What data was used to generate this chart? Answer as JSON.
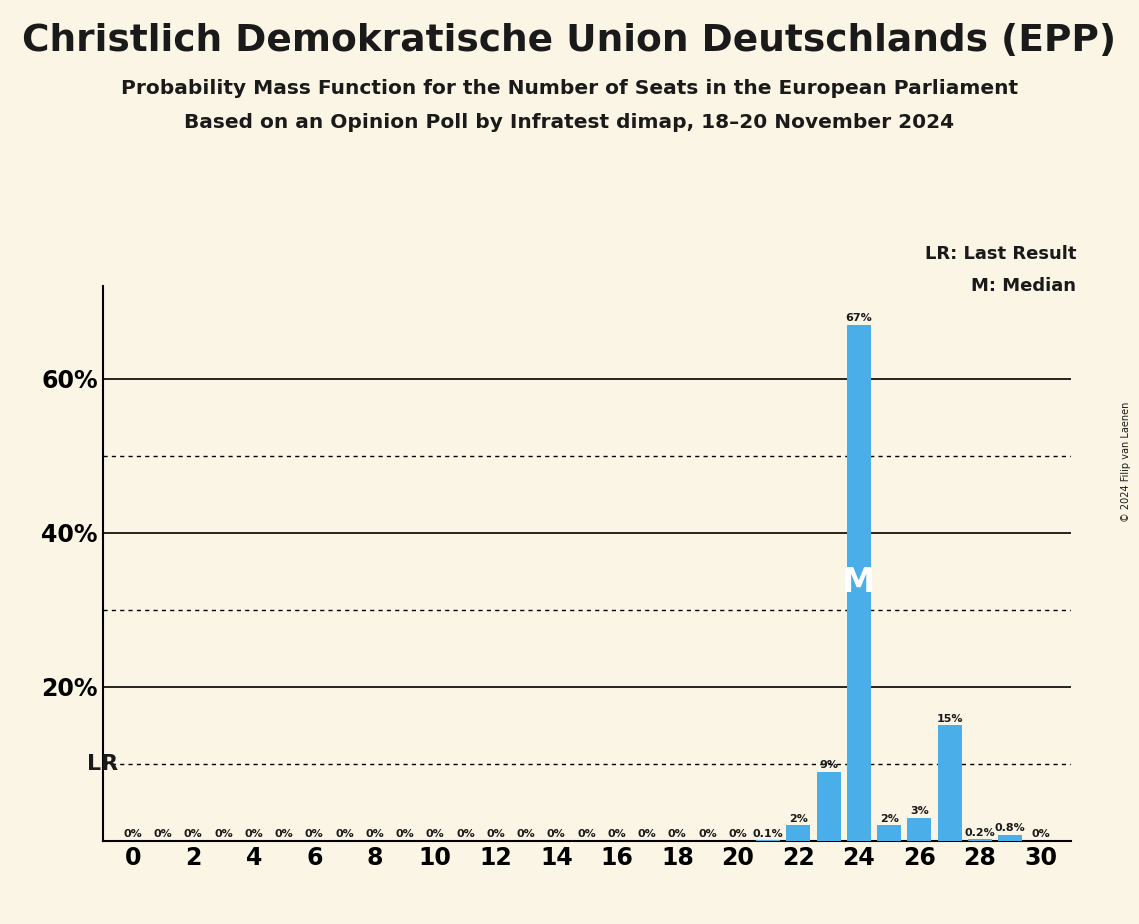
{
  "title": "Christlich Demokratische Union Deutschlands (EPP)",
  "subtitle1": "Probability Mass Function for the Number of Seats in the European Parliament",
  "subtitle2": "Based on an Opinion Poll by Infratest dimap, 18–20 November 2024",
  "copyright": "© 2024 Filip van Laenen",
  "background_color": "#faf5e4",
  "bar_color": "#4aaee8",
  "text_color": "#1a1a1a",
  "seats": [
    0,
    1,
    2,
    3,
    4,
    5,
    6,
    7,
    8,
    9,
    10,
    11,
    12,
    13,
    14,
    15,
    16,
    17,
    18,
    19,
    20,
    21,
    22,
    23,
    24,
    25,
    26,
    27,
    28,
    29,
    30
  ],
  "probs": [
    0,
    0,
    0,
    0,
    0,
    0,
    0,
    0,
    0,
    0,
    0,
    0,
    0,
    0,
    0,
    0,
    0,
    0,
    0,
    0,
    0,
    0.001,
    0.02,
    0.09,
    0.67,
    0.02,
    0.03,
    0.15,
    0.002,
    0.008,
    0.0
  ],
  "labels": [
    "0%",
    "0%",
    "0%",
    "0%",
    "0%",
    "0%",
    "0%",
    "0%",
    "0%",
    "0%",
    "0%",
    "0%",
    "0%",
    "0%",
    "0%",
    "0%",
    "0%",
    "0%",
    "0%",
    "0%",
    "0%",
    "0.1%",
    "2%",
    "9%",
    "67%",
    "2%",
    "3%",
    "15%",
    "0.2%",
    "0.8%",
    "0%"
  ],
  "show_label_threshold": 0,
  "last_result_prob": 0.1,
  "median_seat": 24,
  "lr_label": "LR",
  "m_label": "M",
  "legend_lr": "LR: Last Result",
  "legend_m": "M: Median",
  "y_max": 0.72,
  "dotted_lines": [
    0.1,
    0.3,
    0.5
  ],
  "solid_lines": [
    0.2,
    0.4,
    0.6
  ]
}
